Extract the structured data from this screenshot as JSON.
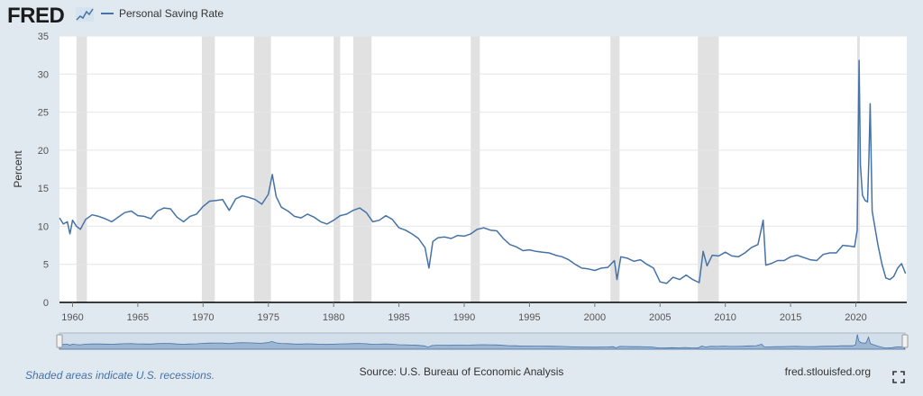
{
  "header": {
    "logo_text": "FRED",
    "logo_icon": "chart-line-icon",
    "legend_label": "Personal Saving Rate"
  },
  "footer": {
    "recession_note": "Shaded areas indicate U.S. recessions.",
    "source": "Source: U.S. Bureau of Economic Analysis",
    "site": "fred.stlouisfed.org",
    "fullscreen_icon": "fullscreen-icon"
  },
  "colors": {
    "background": "#e1e9f0",
    "plot_background": "#ffffff",
    "series": "#4572a7",
    "recession": "#e1e1e1",
    "grid": "#e6e6e6"
  },
  "chart_data": {
    "type": "line",
    "ylabel": "Percent",
    "xlim": [
      1959.0,
      2023.9
    ],
    "ylim": [
      0,
      35
    ],
    "y_ticks": [
      0,
      5,
      10,
      15,
      20,
      25,
      30,
      35
    ],
    "x_ticks": [
      1960,
      1965,
      1970,
      1975,
      1980,
      1985,
      1990,
      1995,
      2000,
      2005,
      2010,
      2015,
      2020
    ],
    "grid": "horizontal",
    "legend_position": "top-left",
    "recessions": [
      [
        1960.3,
        1961.1
      ],
      [
        1969.9,
        1970.9
      ],
      [
        1973.9,
        1975.2
      ],
      [
        1980.0,
        1980.5
      ],
      [
        1981.5,
        1982.9
      ],
      [
        1990.5,
        1991.2
      ],
      [
        2001.2,
        2001.9
      ],
      [
        2007.9,
        2009.5
      ],
      [
        2020.1,
        2020.3
      ]
    ],
    "series": [
      {
        "name": "Personal Saving Rate",
        "x": [
          1959.0,
          1959.3,
          1959.6,
          1959.8,
          1960.0,
          1960.3,
          1960.6,
          1961.0,
          1961.5,
          1962.0,
          1962.5,
          1963.0,
          1963.5,
          1964.0,
          1964.5,
          1965.0,
          1965.5,
          1966.0,
          1966.5,
          1967.0,
          1967.5,
          1968.0,
          1968.5,
          1969.0,
          1969.5,
          1970.0,
          1970.5,
          1971.0,
          1971.5,
          1972.0,
          1972.5,
          1973.0,
          1973.5,
          1974.0,
          1974.5,
          1975.0,
          1975.3,
          1975.6,
          1976.0,
          1976.5,
          1977.0,
          1977.5,
          1978.0,
          1978.5,
          1979.0,
          1979.5,
          1980.0,
          1980.5,
          1981.0,
          1981.5,
          1982.0,
          1982.5,
          1983.0,
          1983.5,
          1984.0,
          1984.5,
          1985.0,
          1985.5,
          1986.0,
          1986.5,
          1987.0,
          1987.3,
          1987.6,
          1988.0,
          1988.5,
          1989.0,
          1989.5,
          1990.0,
          1990.5,
          1991.0,
          1991.5,
          1992.0,
          1992.5,
          1993.0,
          1993.5,
          1994.0,
          1994.5,
          1995.0,
          1995.5,
          1996.0,
          1996.5,
          1997.0,
          1997.5,
          1998.0,
          1998.5,
          1999.0,
          1999.5,
          2000.0,
          2000.5,
          2001.0,
          2001.5,
          2001.7,
          2002.0,
          2002.5,
          2003.0,
          2003.5,
          2004.0,
          2004.5,
          2005.0,
          2005.5,
          2006.0,
          2006.5,
          2007.0,
          2007.5,
          2008.0,
          2008.3,
          2008.6,
          2009.0,
          2009.5,
          2010.0,
          2010.5,
          2011.0,
          2011.5,
          2012.0,
          2012.5,
          2012.9,
          2013.1,
          2013.5,
          2014.0,
          2014.5,
          2015.0,
          2015.5,
          2016.0,
          2016.5,
          2017.0,
          2017.5,
          2018.0,
          2018.5,
          2019.0,
          2019.5,
          2019.9,
          2020.1,
          2020.25,
          2020.35,
          2020.5,
          2020.7,
          2020.9,
          2021.0,
          2021.1,
          2021.25,
          2021.5,
          2021.7,
          2022.0,
          2022.3,
          2022.6,
          2022.9,
          2023.2,
          2023.5,
          2023.8
        ],
        "y": [
          11.1,
          10.3,
          10.6,
          9.0,
          10.8,
          10.0,
          9.6,
          10.9,
          11.5,
          11.3,
          11.0,
          10.6,
          11.2,
          11.8,
          12.0,
          11.4,
          11.3,
          11.0,
          12.0,
          12.4,
          12.3,
          11.2,
          10.6,
          11.3,
          11.6,
          12.6,
          13.3,
          13.4,
          13.5,
          12.1,
          13.6,
          14.0,
          13.8,
          13.5,
          12.9,
          14.2,
          16.8,
          13.9,
          12.5,
          12.0,
          11.3,
          11.1,
          11.6,
          11.2,
          10.6,
          10.3,
          10.8,
          11.4,
          11.6,
          12.1,
          12.4,
          11.8,
          10.6,
          10.8,
          11.4,
          10.9,
          9.8,
          9.5,
          9.0,
          8.4,
          7.2,
          4.5,
          8.0,
          8.5,
          8.6,
          8.4,
          8.8,
          8.7,
          9.0,
          9.6,
          9.8,
          9.5,
          9.4,
          8.4,
          7.6,
          7.3,
          6.8,
          6.9,
          6.7,
          6.6,
          6.5,
          6.2,
          6.0,
          5.6,
          5.0,
          4.5,
          4.4,
          4.2,
          4.5,
          4.6,
          5.5,
          3.0,
          6.0,
          5.8,
          5.4,
          5.6,
          5.0,
          4.5,
          2.7,
          2.5,
          3.3,
          3.0,
          3.6,
          3.0,
          2.6,
          6.7,
          4.8,
          6.2,
          6.1,
          6.6,
          6.1,
          6.0,
          6.5,
          7.2,
          7.6,
          10.8,
          4.9,
          5.1,
          5.5,
          5.5,
          6.0,
          6.2,
          5.9,
          5.6,
          5.5,
          6.3,
          6.5,
          6.5,
          7.5,
          7.4,
          7.3,
          9.5,
          31.8,
          18.0,
          14.1,
          13.4,
          13.2,
          19.0,
          26.1,
          12.0,
          9.5,
          7.5,
          5.0,
          3.2,
          3.0,
          3.4,
          4.5,
          5.1,
          3.8
        ]
      }
    ]
  }
}
